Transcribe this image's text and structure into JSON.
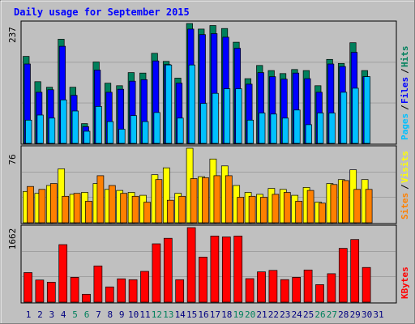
{
  "title": "Daily usage for September 2015",
  "colors": {
    "hits": "#00805c",
    "files": "#0000ff",
    "pages": "#00c0ff",
    "visits": "#ffff00",
    "sites": "#ff8000",
    "kbytes": "#ff0000",
    "plot_bg": "#c0c0c0",
    "weekend_label": "#00805c",
    "weekday_label": "#000080",
    "title": "#0000ff"
  },
  "chart_data": [
    {
      "type": "bar",
      "name": "hits-files-pages",
      "categories": [
        "1",
        "2",
        "3",
        "4",
        "5",
        "6",
        "7",
        "8",
        "9",
        "10",
        "11",
        "12",
        "13",
        "14",
        "15",
        "16",
        "17",
        "18",
        "19",
        "20",
        "21",
        "22",
        "23",
        "24",
        "25",
        "26",
        "27",
        "28",
        "29",
        "30",
        "31"
      ],
      "weekend_days": [
        "5",
        "6",
        "12",
        "13",
        "19",
        "20",
        "26",
        "27"
      ],
      "ymax_label": "237",
      "ylim": [
        0,
        237
      ],
      "series": [
        {
          "name": "Hits",
          "values": [
            172,
            122,
            111,
            206,
            111,
            39,
            161,
            119,
            114,
            140,
            139,
            178,
            162,
            129,
            237,
            226,
            233,
            227,
            200,
            128,
            154,
            144,
            138,
            146,
            144,
            114,
            166,
            158,
            199,
            144,
            0
          ]
        },
        {
          "name": "Files",
          "values": [
            157,
            101,
            106,
            192,
            95,
            33,
            145,
            101,
            107,
            123,
            126,
            163,
            156,
            119,
            226,
            215,
            217,
            210,
            188,
            117,
            140,
            132,
            127,
            139,
            128,
            101,
            157,
            152,
            180,
            132,
            0
          ]
        },
        {
          "name": "Pages",
          "values": [
            46,
            56,
            50,
            86,
            64,
            24,
            73,
            43,
            28,
            55,
            43,
            61,
            155,
            50,
            155,
            79,
            99,
            108,
            108,
            46,
            60,
            58,
            50,
            66,
            37,
            60,
            60,
            101,
            109,
            132,
            0
          ]
        }
      ],
      "right_labels": [
        {
          "text": "Pages",
          "color_key": "pages"
        },
        {
          "text": "Files",
          "color_key": "files"
        },
        {
          "text": "Hits",
          "color_key": "hits"
        }
      ]
    },
    {
      "type": "bar",
      "name": "visits-sites",
      "categories": [
        "1",
        "2",
        "3",
        "4",
        "5",
        "6",
        "7",
        "8",
        "9",
        "10",
        "11",
        "12",
        "13",
        "14",
        "15",
        "16",
        "17",
        "18",
        "19",
        "20",
        "21",
        "22",
        "23",
        "24",
        "25",
        "26",
        "27",
        "28",
        "29",
        "30",
        "31"
      ],
      "ymax_label": "76",
      "ylim": [
        0,
        76
      ],
      "series": [
        {
          "name": "Visits",
          "values": [
            32,
            30,
            38,
            55,
            29,
            31,
            40,
            34,
            33,
            31,
            28,
            49,
            56,
            30,
            76,
            47,
            65,
            58,
            38,
            31,
            29,
            35,
            34,
            28,
            36,
            21,
            40,
            44,
            54,
            44,
            0
          ]
        },
        {
          "name": "Sites",
          "values": [
            37,
            34,
            40,
            27,
            30,
            22,
            48,
            38,
            30,
            27,
            21,
            44,
            23,
            27,
            45,
            46,
            48,
            48,
            26,
            27,
            26,
            29,
            31,
            22,
            33,
            20,
            39,
            43,
            34,
            34,
            0
          ]
        }
      ],
      "right_labels": [
        {
          "text": "Sites",
          "color_key": "sites"
        },
        {
          "text": "Visits",
          "color_key": "visits"
        }
      ]
    },
    {
      "type": "bar",
      "name": "kbytes",
      "categories": [
        "1",
        "2",
        "3",
        "4",
        "5",
        "6",
        "7",
        "8",
        "9",
        "10",
        "11",
        "12",
        "13",
        "14",
        "15",
        "16",
        "17",
        "18",
        "19",
        "20",
        "21",
        "22",
        "23",
        "24",
        "25",
        "26",
        "27",
        "28",
        "29",
        "30",
        "31"
      ],
      "ymax_label": "1662",
      "ylim": [
        0,
        1662
      ],
      "series": [
        {
          "name": "KBytes",
          "values": [
            660,
            493,
            444,
            1283,
            553,
            176,
            808,
            339,
            520,
            500,
            686,
            1300,
            1423,
            501,
            1662,
            1004,
            1474,
            1455,
            1474,
            523,
            676,
            709,
            503,
            553,
            717,
            391,
            634,
            1200,
            1397,
            773,
            0
          ]
        }
      ],
      "right_labels": [
        {
          "text": "KBytes",
          "color_key": "kbytes"
        }
      ]
    }
  ]
}
